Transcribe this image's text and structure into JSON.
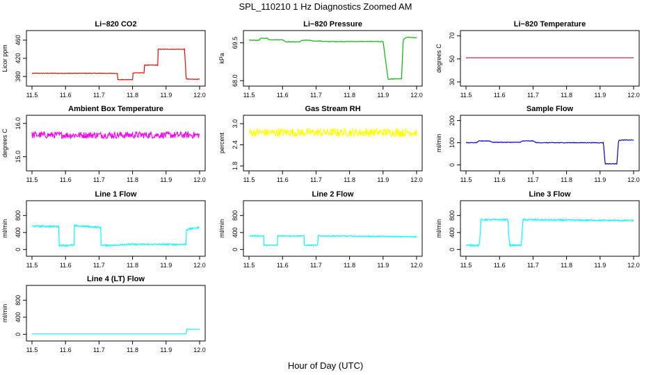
{
  "figure": {
    "title": "SPL_110210  1 Hz Diagnostics Zoomed AM",
    "xlabel": "Hour of Day (UTC)"
  },
  "chart_data": [
    {
      "type": "line",
      "title": "Li−820 CO2",
      "ylabel": "Licor ppm",
      "color": "#ff0000",
      "noise": 0.6,
      "xlim": [
        11.5,
        12.0
      ],
      "ylim": [
        368,
        472
      ],
      "yticks": [
        "380",
        "420",
        "460"
      ],
      "yticks_v": [
        380,
        420,
        460
      ],
      "xticks": [
        "11.5",
        "11.6",
        "11.7",
        "11.8",
        "11.9",
        "12.0"
      ],
      "series": [
        {
          "x": [
            11.5,
            11.755,
            11.755,
            11.8,
            11.8,
            11.835,
            11.835,
            11.875,
            11.875,
            11.955,
            11.96,
            11.965,
            12.0
          ],
          "y": [
            387,
            387,
            373,
            373,
            388,
            388,
            405,
            405,
            440,
            440,
            375,
            374,
            374
          ]
        }
      ]
    },
    {
      "type": "line",
      "title": "Li−820 Pressure",
      "ylabel": "kPa",
      "color": "#00bb00",
      "noise": 0.008,
      "xlim": [
        11.5,
        12.0
      ],
      "ylim": [
        67.95,
        69.82
      ],
      "yticks": [
        "68.0",
        "69.5"
      ],
      "yticks_v": [
        68.0,
        69.5
      ],
      "xticks": [
        "11.5",
        "11.6",
        "11.7",
        "11.8",
        "11.9",
        "12.0"
      ],
      "series": [
        {
          "x": [
            11.5,
            11.53,
            11.535,
            11.555,
            11.56,
            11.6,
            11.61,
            11.65,
            11.66,
            11.68,
            11.69,
            11.715,
            11.72,
            11.9,
            11.915,
            11.93,
            11.955,
            11.96,
            11.97,
            12.0
          ],
          "y": [
            69.6,
            69.6,
            69.68,
            69.68,
            69.62,
            69.62,
            69.54,
            69.54,
            69.6,
            69.6,
            69.57,
            69.57,
            69.55,
            69.55,
            68.05,
            68.07,
            68.07,
            69.62,
            69.72,
            69.7
          ]
        }
      ]
    },
    {
      "type": "line",
      "title": "Li−820 Temperature",
      "ylabel": "degrees C",
      "color": "#cc0066",
      "noise": 0,
      "xlim": [
        11.5,
        12.0
      ],
      "ylim": [
        30,
        71
      ],
      "yticks": [
        "30",
        "50",
        "70"
      ],
      "yticks_v": [
        30,
        50,
        70
      ],
      "xticks": [
        "11.5",
        "11.6",
        "11.7",
        "11.8",
        "11.9",
        "12.0"
      ],
      "series": [
        {
          "x": [
            11.5,
            12.0
          ],
          "y": [
            51,
            51
          ]
        }
      ]
    },
    {
      "type": "line",
      "title": "Ambient Box Temperature",
      "ylabel": "degrees C",
      "color": "#ff00ff",
      "noise": 0.1,
      "xlim": [
        11.5,
        12.0
      ],
      "ylim": [
        14.7,
        16.12
      ],
      "yticks": [
        "15.0",
        "16.0"
      ],
      "yticks_v": [
        15.0,
        16.0
      ],
      "xticks": [
        "11.5",
        "11.6",
        "11.7",
        "11.8",
        "11.9",
        "12.0"
      ],
      "series": [
        {
          "x": [
            11.5,
            12.0
          ],
          "y": [
            15.65,
            15.65
          ]
        }
      ]
    },
    {
      "type": "line",
      "title": "Gas Stream RH",
      "ylabel": "percent",
      "color": "#ffff00",
      "noise": 0.12,
      "xlim": [
        11.5,
        12.0
      ],
      "ylim": [
        1.78,
        3.12
      ],
      "yticks": [
        "1.8",
        "2.4",
        "3.0"
      ],
      "yticks_v": [
        1.8,
        2.4,
        3.0
      ],
      "xticks": [
        "11.5",
        "11.6",
        "11.7",
        "11.8",
        "11.9",
        "12.0"
      ],
      "series": [
        {
          "x": [
            11.5,
            12.0
          ],
          "y": [
            2.75,
            2.75
          ]
        }
      ]
    },
    {
      "type": "line",
      "title": "Sample Flow",
      "ylabel": "ml/min",
      "color": "#0000cc",
      "noise": 1.2,
      "xlim": [
        11.5,
        12.0
      ],
      "ylim": [
        -8,
        205
      ],
      "yticks": [
        "0",
        "100",
        "200"
      ],
      "yticks_v": [
        0,
        100,
        200
      ],
      "xticks": [
        "11.5",
        "11.6",
        "11.7",
        "11.8",
        "11.9",
        "12.0"
      ],
      "series": [
        {
          "x": [
            11.5,
            11.53,
            11.54,
            11.57,
            11.58,
            11.66,
            11.67,
            11.7,
            11.71,
            11.8,
            11.91,
            11.915,
            11.95,
            11.955,
            11.965,
            12.0
          ],
          "y": [
            100,
            100,
            108,
            108,
            102,
            102,
            108,
            108,
            100,
            100,
            100,
            5,
            5,
            110,
            112,
            112
          ]
        }
      ]
    },
    {
      "type": "line",
      "title": "Line 1 Flow",
      "ylabel": "ml/min",
      "color": "#00ffff",
      "noise": 20,
      "xlim": [
        11.5,
        12.0
      ],
      "ylim": [
        -60,
        1050
      ],
      "yticks": [
        "0",
        "400",
        "800"
      ],
      "yticks_v": [
        0,
        400,
        800
      ],
      "xticks": [
        "11.5",
        "11.6",
        "11.7",
        "11.8",
        "11.9",
        "12.0"
      ],
      "series": [
        {
          "x": [
            11.5,
            11.58,
            11.58,
            11.625,
            11.625,
            11.705,
            11.705,
            11.76,
            11.76,
            11.955,
            11.96,
            11.96,
            12.0
          ],
          "y": [
            550,
            540,
            100,
            100,
            560,
            520,
            100,
            100,
            120,
            120,
            130,
            470,
            520
          ]
        }
      ]
    },
    {
      "type": "line",
      "title": "Line 2 Flow",
      "ylabel": "ml/min",
      "color": "#00ffff",
      "noise": 12,
      "xlim": [
        11.5,
        12.0
      ],
      "ylim": [
        -60,
        1050
      ],
      "yticks": [
        "0",
        "400",
        "800"
      ],
      "yticks_v": [
        0,
        400,
        800
      ],
      "xticks": [
        "11.5",
        "11.6",
        "11.7",
        "11.8",
        "11.9",
        "12.0"
      ],
      "series": [
        {
          "x": [
            11.5,
            11.545,
            11.545,
            11.585,
            11.585,
            11.665,
            11.665,
            11.705,
            11.705,
            12.0
          ],
          "y": [
            320,
            320,
            100,
            100,
            320,
            320,
            100,
            100,
            320,
            300
          ]
        }
      ]
    },
    {
      "type": "line",
      "title": "Line 3 Flow",
      "ylabel": "ml/min",
      "color": "#00ffff",
      "noise": 18,
      "xlim": [
        11.5,
        12.0
      ],
      "ylim": [
        -60,
        1050
      ],
      "yticks": [
        "0",
        "400",
        "800"
      ],
      "yticks_v": [
        0,
        400,
        800
      ],
      "xticks": [
        "11.5",
        "11.6",
        "11.7",
        "11.8",
        "11.9",
        "12.0"
      ],
      "series": [
        {
          "x": [
            11.5,
            11.54,
            11.545,
            11.625,
            11.63,
            11.665,
            11.67,
            12.0
          ],
          "y": [
            100,
            100,
            700,
            700,
            100,
            100,
            700,
            680
          ]
        }
      ]
    },
    {
      "type": "line",
      "title": "Line 4 (LT) Flow",
      "ylabel": "ml/min",
      "color": "#00ffff",
      "noise": 0,
      "xlim": [
        11.5,
        12.0
      ],
      "ylim": [
        -60,
        1050
      ],
      "yticks": [
        "0",
        "400",
        "800"
      ],
      "yticks_v": [
        0,
        400,
        800
      ],
      "xticks": [
        "11.5",
        "11.6",
        "11.7",
        "11.8",
        "11.9",
        "12.0"
      ],
      "series": [
        {
          "x": [
            11.5,
            11.96,
            11.962,
            12.0
          ],
          "y": [
            10,
            10,
            120,
            115
          ]
        }
      ]
    }
  ]
}
